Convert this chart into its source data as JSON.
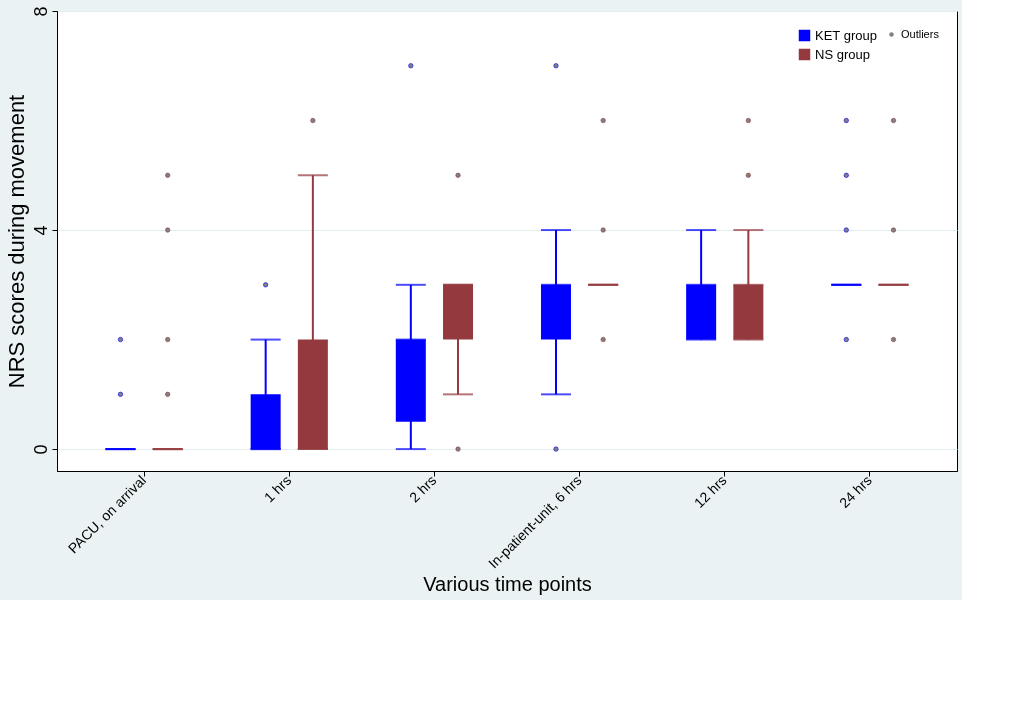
{
  "chart_data": {
    "type": "box",
    "xlabel": "Various time points",
    "ylabel": "NRS scores during movement",
    "categories": [
      "PACU, on arrival",
      "1 hrs",
      "2 hrs",
      "In-patient-unit, 6 hrs",
      "12 hrs",
      "24 hrs"
    ],
    "series": [
      {
        "name": "KET group",
        "color": "#0000ff",
        "boxes": [
          {
            "low": 0,
            "q1": 0,
            "median": 0,
            "q3": 0,
            "high": 0,
            "outliers": [
              1,
              2
            ]
          },
          {
            "low": 0,
            "q1": 0,
            "median": 0,
            "q3": 1,
            "high": 2,
            "outliers": [
              3
            ]
          },
          {
            "low": 0,
            "q1": 0.5,
            "median": 2,
            "q3": 2,
            "high": 3,
            "outliers": [
              7
            ]
          },
          {
            "low": 1,
            "q1": 2,
            "median": 3,
            "q3": 3,
            "high": 4,
            "outliers": [
              0,
              7
            ]
          },
          {
            "low": 2,
            "q1": 2,
            "median": 3,
            "q3": 3,
            "high": 4
          },
          {
            "low": 3,
            "q1": 3,
            "median": 3,
            "q3": 3,
            "high": 3,
            "outliers": [
              2,
              4,
              5,
              6
            ]
          }
        ]
      },
      {
        "name": "NS group",
        "color": "#943a3f",
        "boxes": [
          {
            "low": 0,
            "q1": 0,
            "median": 0,
            "q3": 0,
            "high": 0,
            "outliers": [
              1,
              2,
              4,
              5
            ]
          },
          {
            "low": 0,
            "q1": 0,
            "median": 0,
            "q3": 2,
            "high": 5,
            "outliers": [
              6
            ]
          },
          {
            "low": 1,
            "q1": 2,
            "median": 3,
            "q3": 3,
            "high": 3,
            "outliers": [
              0,
              5
            ]
          },
          {
            "low": 3,
            "q1": 3,
            "median": 3,
            "q3": 3,
            "high": 3,
            "outliers": [
              2,
              4,
              6
            ]
          },
          {
            "low": 2,
            "q1": 2,
            "median": 3,
            "q3": 3,
            "high": 4,
            "outliers": [
              5,
              6
            ]
          },
          {
            "low": 3,
            "q1": 3,
            "median": 3,
            "q3": 3,
            "high": 3,
            "outliers": [
              2,
              4,
              6
            ]
          }
        ]
      }
    ],
    "annotations": [
      "Outliers"
    ],
    "ylim": [
      -0.4,
      8
    ],
    "yticks": [
      0,
      4,
      8
    ],
    "grid": "y",
    "legend": "top right"
  }
}
